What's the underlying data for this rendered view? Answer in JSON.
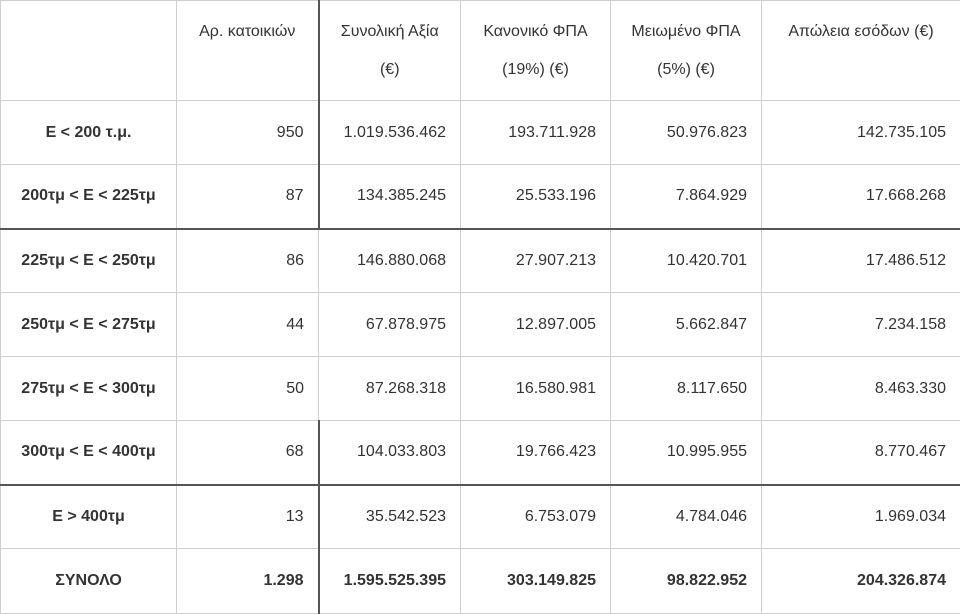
{
  "table": {
    "headers": [
      {
        "lines": [
          ""
        ]
      },
      {
        "lines": [
          "Αρ. κατοικιών"
        ]
      },
      {
        "lines": [
          "Συνολική Αξία",
          "(€)"
        ]
      },
      {
        "lines": [
          "Κανονικό ΦΠΑ",
          "(19%)  (€)"
        ]
      },
      {
        "lines": [
          "Μειωμένο ΦΠΑ",
          "(5%)  (€)"
        ]
      },
      {
        "lines": [
          "Απώλεια εσόδων (€)"
        ]
      }
    ],
    "rows": [
      {
        "label": "Ε < 200 τ.μ.",
        "values": [
          "950",
          "1.019.536.462",
          "193.711.928",
          "50.976.823",
          "142.735.105"
        ]
      },
      {
        "label": "200τμ < Ε < 225τμ",
        "values": [
          "87",
          "134.385.245",
          "25.533.196",
          "7.864.929",
          "17.668.268"
        ]
      },
      {
        "label": "225τμ < Ε < 250τμ",
        "values": [
          "86",
          "146.880.068",
          "27.907.213",
          "10.420.701",
          "17.486.512"
        ]
      },
      {
        "label": "250τμ < Ε < 275τμ",
        "values": [
          "44",
          "67.878.975",
          "12.897.005",
          "5.662.847",
          "7.234.158"
        ]
      },
      {
        "label": "275τμ < Ε < 300τμ",
        "values": [
          "50",
          "87.268.318",
          "16.580.981",
          "8.117.650",
          "8.463.330"
        ]
      },
      {
        "label": "300τμ < Ε < 400τμ",
        "values": [
          "68",
          "104.033.803",
          "19.766.423",
          "10.995.955",
          "8.770.467"
        ]
      },
      {
        "label": "Ε > 400τμ",
        "values": [
          "13",
          "35.542.523",
          "6.753.079",
          "4.784.046",
          "1.969.034"
        ]
      }
    ],
    "total": {
      "label": "ΣΥΝΟΛΟ",
      "values": [
        "1.298",
        "1.595.525.395",
        "303.149.825",
        "98.822.952",
        "204.326.874"
      ]
    }
  }
}
